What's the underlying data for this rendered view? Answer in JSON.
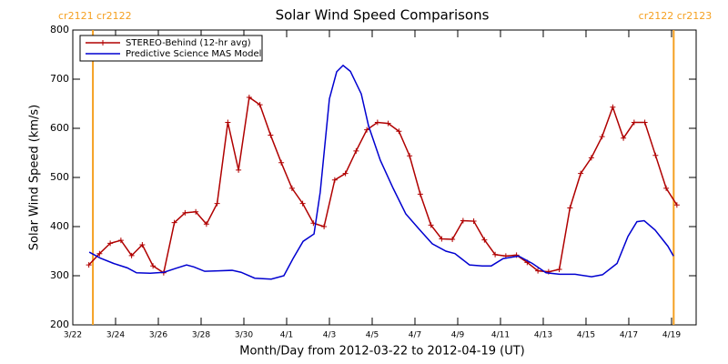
{
  "chart_data": {
    "type": "line",
    "title": "Solar Wind Speed Comparisons",
    "x_label": "Month/Day from 2012-03-22 to 2012-04-19 (UT)",
    "y_label": "Solar Wind Speed (km/s)",
    "xlim": [
      0,
      29.15
    ],
    "ylim": [
      200,
      800
    ],
    "xticks": [
      {
        "value": 0,
        "label": "3/22"
      },
      {
        "value": 2,
        "label": "3/24"
      },
      {
        "value": 4,
        "label": "3/26"
      },
      {
        "value": 6,
        "label": "3/28"
      },
      {
        "value": 8,
        "label": "3/30"
      },
      {
        "value": 10,
        "label": "4/1"
      },
      {
        "value": 12,
        "label": "4/3"
      },
      {
        "value": 14,
        "label": "4/5"
      },
      {
        "value": 16,
        "label": "4/7"
      },
      {
        "value": 18,
        "label": "4/9"
      },
      {
        "value": 20,
        "label": "4/11"
      },
      {
        "value": 22,
        "label": "4/13"
      },
      {
        "value": 24,
        "label": "4/15"
      },
      {
        "value": 26,
        "label": "4/17"
      },
      {
        "value": 28,
        "label": "4/19"
      }
    ],
    "yticks": [
      200,
      300,
      400,
      500,
      600,
      700,
      800
    ],
    "legend": "upper left",
    "boundaries": [
      {
        "x": 0.94,
        "label": "cr2121 cr2122",
        "color": "#f5a020"
      },
      {
        "x": 28.1,
        "label": "cr2122 cr2123",
        "color": "#f5a020"
      }
    ],
    "series": [
      {
        "name": "STEREO-Behind (12-hr avg)",
        "color": "#b00000",
        "marker": "+",
        "x": [
          0.75,
          1.25,
          1.75,
          2.25,
          2.75,
          3.25,
          3.75,
          4.25,
          4.75,
          5.25,
          5.75,
          6.25,
          6.75,
          7.25,
          7.75,
          8.25,
          8.75,
          9.25,
          9.75,
          10.25,
          10.75,
          11.25,
          11.75,
          12.25,
          12.75,
          13.25,
          13.75,
          14.25,
          14.75,
          15.25,
          15.75,
          16.25,
          16.75,
          17.25,
          17.75,
          18.25,
          18.75,
          19.25,
          19.75,
          20.25,
          20.75,
          21.25,
          21.75,
          22.25,
          22.75,
          23.25,
          23.75,
          24.25,
          24.75,
          25.25,
          25.75,
          26.25,
          26.75,
          27.25,
          27.75,
          28.25
        ],
        "values": [
          322,
          345,
          366,
          372,
          341,
          363,
          320,
          306,
          408,
          428,
          430,
          405,
          447,
          612,
          515,
          663,
          648,
          586,
          530,
          478,
          447,
          407,
          400,
          495,
          508,
          554,
          597,
          612,
          610,
          594,
          544,
          466,
          403,
          375,
          374,
          412,
          411,
          373,
          343,
          340,
          342,
          327,
          310,
          308,
          313,
          438,
          508,
          540,
          583,
          643,
          580,
          612,
          612,
          545,
          478,
          444
        ]
      },
      {
        "name": "Predictive Science MAS Model",
        "color": "#0000d0",
        "x": [
          0.77,
          1.28,
          1.91,
          2.55,
          2.98,
          3.62,
          4.26,
          4.81,
          5.32,
          5.66,
          6.17,
          6.81,
          7.45,
          7.87,
          8.51,
          9.28,
          9.87,
          10.3,
          10.77,
          11.28,
          11.57,
          12.0,
          12.34,
          12.64,
          12.98,
          13.49,
          13.83,
          14.38,
          14.98,
          15.57,
          16.17,
          16.81,
          17.45,
          17.87,
          18.55,
          19.15,
          19.57,
          20.13,
          20.85,
          21.49,
          22.13,
          22.77,
          23.49,
          24.26,
          24.77,
          25.45,
          25.96,
          26.38,
          26.72,
          27.23,
          27.83,
          28.09
        ],
        "values": [
          348,
          336,
          325,
          316,
          306,
          305,
          307,
          315,
          322,
          318,
          309,
          310,
          311,
          307,
          295,
          293,
          300,
          335,
          370,
          385,
          470,
          660,
          715,
          728,
          716,
          670,
          605,
          535,
          478,
          426,
          396,
          365,
          350,
          345,
          322,
          320,
          320,
          335,
          340,
          325,
          306,
          303,
          303,
          298,
          302,
          325,
          380,
          410,
          412,
          393,
          360,
          340
        ]
      }
    ]
  }
}
